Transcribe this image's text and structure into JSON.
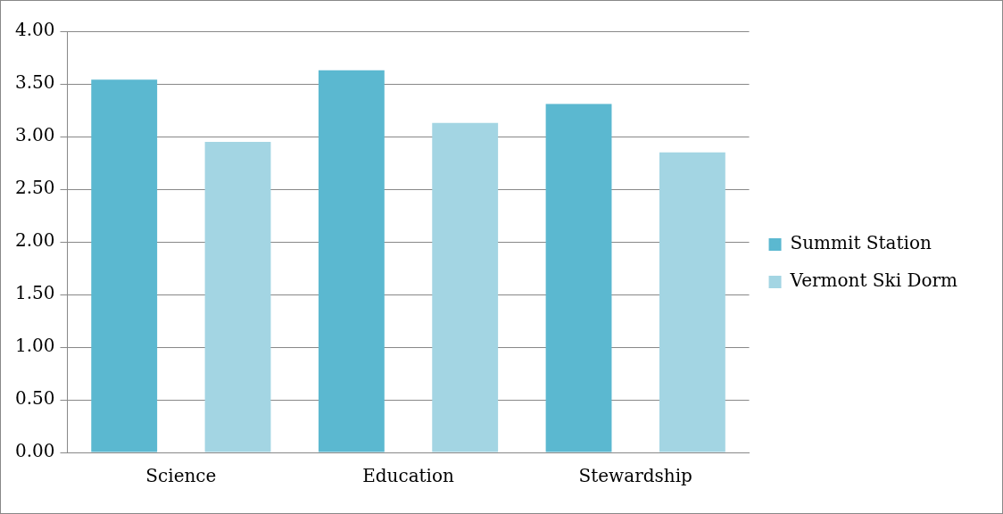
{
  "chart_data": {
    "type": "bar",
    "categories": [
      "Science",
      "Education",
      "Stewardship"
    ],
    "series": [
      {
        "name": "Summit Station",
        "color": "#5bb8d0",
        "values": [
          3.54,
          3.63,
          3.31
        ]
      },
      {
        "name": "Vermont Ski Dorm",
        "color": "#a3d5e3",
        "values": [
          2.95,
          3.13,
          2.85
        ]
      }
    ],
    "ylim": [
      0,
      4
    ],
    "yticks": [
      {
        "value": 0,
        "label": "0.00"
      },
      {
        "value": 0.5,
        "label": "0.50"
      },
      {
        "value": 1,
        "label": "1.00"
      },
      {
        "value": 1.5,
        "label": "1.50"
      },
      {
        "value": 2,
        "label": "2.00"
      },
      {
        "value": 2.5,
        "label": "2.50"
      },
      {
        "value": 3,
        "label": "3.00"
      },
      {
        "value": 3.5,
        "label": "3.50"
      },
      {
        "value": 4,
        "label": "4.00"
      }
    ],
    "grid": "y",
    "legend": "right"
  }
}
